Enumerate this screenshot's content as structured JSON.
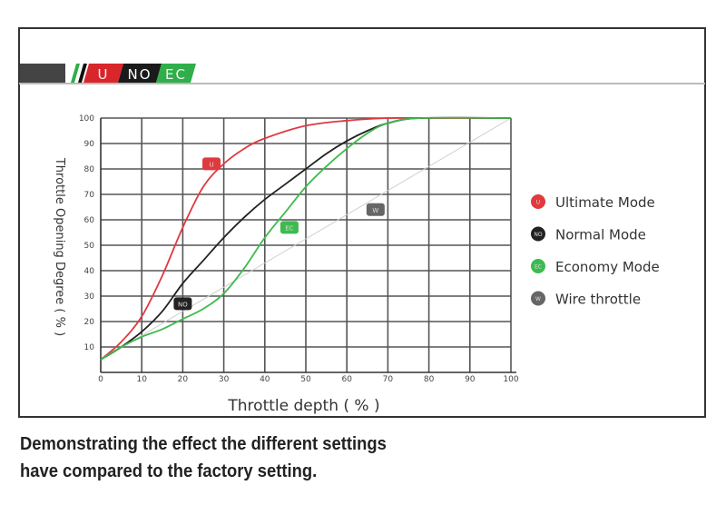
{
  "banner": {
    "tags": [
      {
        "text": "U",
        "color": "#d9262b"
      },
      {
        "text": "NO",
        "color": "#1a1a1a"
      },
      {
        "text": "EC",
        "color": "#2fae4a"
      }
    ]
  },
  "caption": {
    "line1": "Demonstrating the effect the different settings",
    "line2": "have compared to the factory setting."
  },
  "chart_data": {
    "type": "line",
    "title": "",
    "xlabel": "Throttle depth ( % )",
    "ylabel": "Throttle Opening Degree ( % )",
    "xlim": [
      0,
      100
    ],
    "ylim": [
      0,
      100
    ],
    "xticks": [
      0,
      10,
      20,
      30,
      40,
      50,
      60,
      70,
      80,
      90,
      100
    ],
    "yticks": [
      10,
      20,
      30,
      40,
      50,
      60,
      70,
      80,
      90,
      100
    ],
    "grid": true,
    "legend_position": "right",
    "series": [
      {
        "name": "Ultimate Mode",
        "badge": "U",
        "color": "#e0393e",
        "label_at": [
          27,
          82
        ],
        "x": [
          0,
          5,
          10,
          15,
          20,
          25,
          30,
          35,
          40,
          50,
          60,
          70,
          78,
          100
        ],
        "y": [
          5,
          12,
          22,
          38,
          57,
          73,
          82,
          88,
          92,
          97,
          99,
          100,
          100,
          100
        ]
      },
      {
        "name": "Normal Mode",
        "badge": "NO",
        "color": "#222222",
        "label_at": [
          20,
          27
        ],
        "x": [
          0,
          5,
          10,
          15,
          20,
          25,
          30,
          35,
          40,
          45,
          50,
          55,
          60,
          65,
          70,
          78,
          100
        ],
        "y": [
          5,
          10,
          16,
          24,
          35,
          44,
          53,
          61,
          68,
          74,
          80,
          86,
          91,
          95,
          98,
          100,
          100
        ]
      },
      {
        "name": "Economy Mode",
        "badge": "EC",
        "color": "#3dbb4e",
        "label_at": [
          46,
          57
        ],
        "x": [
          0,
          5,
          10,
          15,
          20,
          25,
          30,
          35,
          40,
          45,
          50,
          55,
          60,
          65,
          70,
          78,
          100
        ],
        "y": [
          5,
          10,
          14,
          17,
          21,
          25,
          31,
          41,
          53,
          63,
          73,
          81,
          88,
          94,
          98,
          100,
          100
        ]
      },
      {
        "name": "Wire throttle",
        "badge": "W",
        "color": "#cfcfcf",
        "label_at": [
          67,
          64
        ],
        "x": [
          0,
          100
        ],
        "y": [
          5,
          100
        ]
      }
    ]
  }
}
